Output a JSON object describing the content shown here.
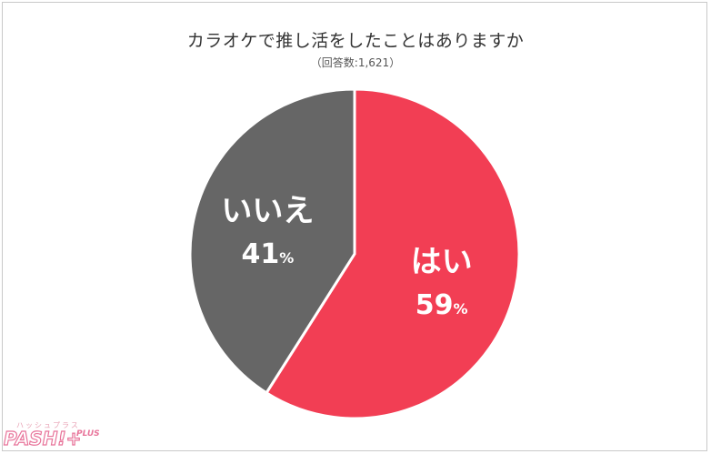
{
  "chart_data": {
    "type": "pie",
    "title": "カラオケで推し活をしたことはありますか",
    "subtitle": "（回答数:1,621）",
    "slices": [
      {
        "label": "はい",
        "value": 59,
        "display": "59",
        "unit": "%",
        "color": "#f23e54"
      },
      {
        "label": "いいえ",
        "value": 41,
        "display": "41",
        "unit": "%",
        "color": "#666666"
      }
    ],
    "start_angle_deg": 0,
    "direction": "clockwise"
  },
  "logo": {
    "kana": "ハッシュプラス",
    "main": "PASH!+",
    "plus": "PLUS"
  }
}
